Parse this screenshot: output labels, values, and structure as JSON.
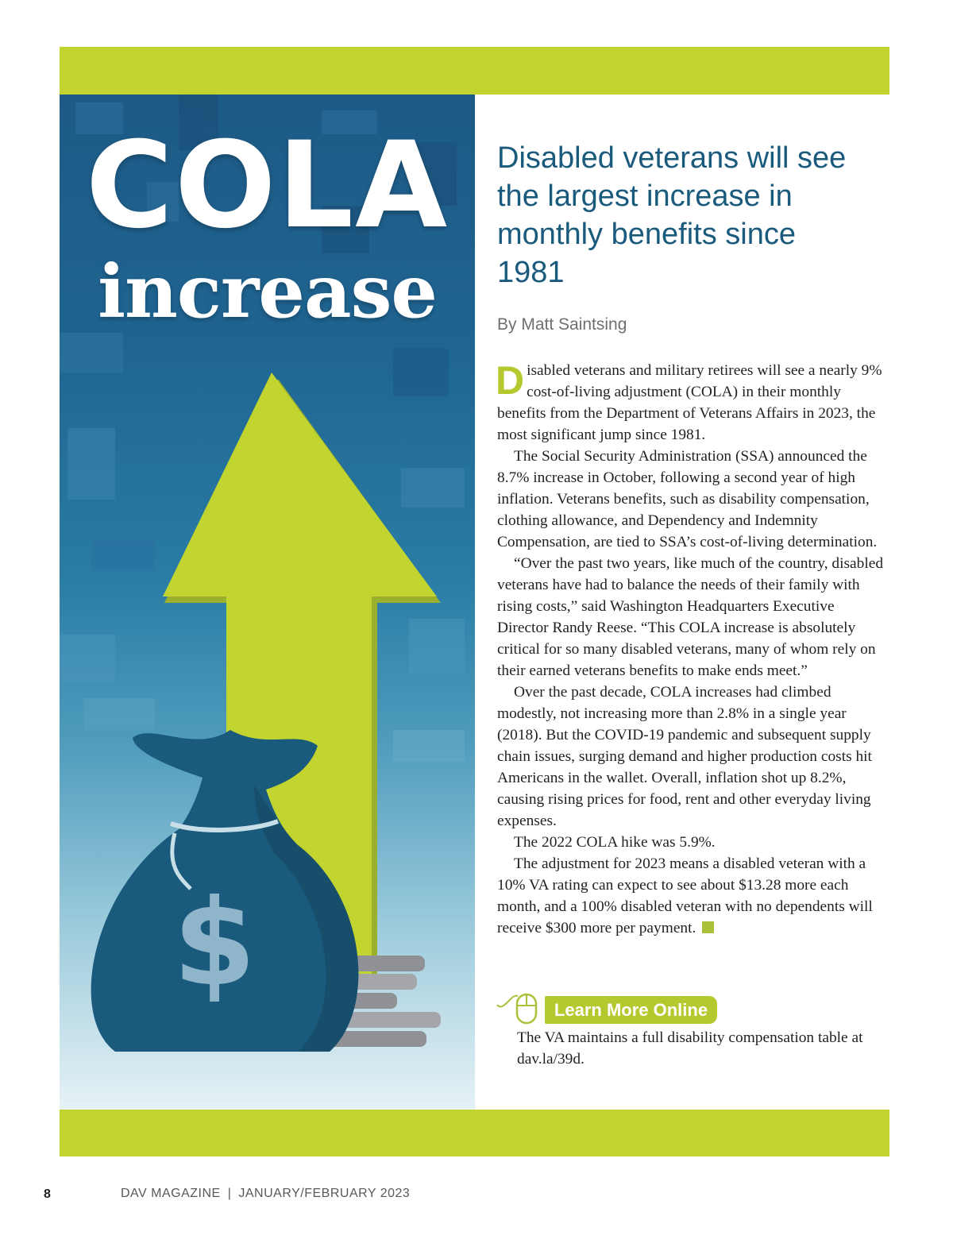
{
  "art": {
    "headline_line1": "COLA",
    "headline_line2": "increase",
    "money_icon": "money-bag-icon",
    "arrow_icon": "up-arrow-icon",
    "coins_icon": "coin-stack-icon",
    "accent_color": "#c2d42f",
    "bag_color": "#1a5a7c"
  },
  "article": {
    "deck": "Disabled veterans will see the largest increase in monthly benefits since 1981",
    "byline": "By Matt Saintsing",
    "dropcap": "D",
    "paragraphs": [
      "isabled veterans and military retirees will see a nearly 9% cost-of-living adjustment (COLA) in their monthly benefits from the Department of Veterans Affairs in 2023, the most significant jump since 1981.",
      "The Social Security Administration (SSA) announced the 8.7% increase in October, following a second year of high inflation. Veterans benefits, such as disability compensation, clothing allowance, and Dependency and Indemnity Compensation, are tied to SSA’s cost-of-living determination.",
      "“Over the past two years, like much of the country, disabled veterans have had to balance the needs of their family with rising costs,” said Washington Headquarters Executive Director Randy Reese. “This COLA increase is absolutely critical for so many disabled veterans, many of whom rely on their earned veterans benefits to make ends meet.”",
      "Over the past decade, COLA increases had climbed modestly, not increasing more than 2.8% in a single year (2018). But the COVID-19 pandemic and subsequent supply chain issues, surging demand and higher production costs hit Americans in the wallet. Overall, inflation shot up 8.2%, causing rising prices for food, rent and other everyday living expenses.",
      "The 2022 COLA hike was 5.9%.",
      "The adjustment for 2023 means a disabled veteran with a 10% VA rating can expect to see about $13.28 more each month, and a 100% disabled veteran with no dependents will receive $300 more per payment."
    ]
  },
  "learn_more": {
    "icon": "computer-mouse-icon",
    "label": "Learn More Online",
    "text": "The VA maintains a full disability compensation table at dav.la/39d."
  },
  "footer": {
    "page_number": "8",
    "publication": "DAV MAGAZINE",
    "separator": "|",
    "issue": "JANUARY/FEBRUARY 2023"
  }
}
